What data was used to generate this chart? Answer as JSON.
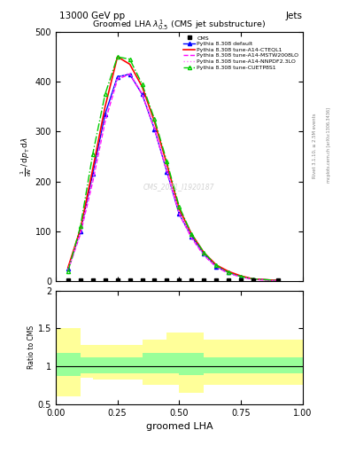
{
  "title": "13000 GeV pp",
  "title_right": "Jets",
  "plot_title": "Groomed LHA $\\lambda^{1}_{0.5}$ (CMS jet substructure)",
  "xlabel": "groomed LHA",
  "ylabel_ratio": "Ratio to CMS",
  "watermark": "CMS_2021_I1920187",
  "rivet_label": "Rivet 3.1.10, ≥ 2.5M events",
  "mcplots_label": "mcplots.cern.ch [arXiv:1306.3436]",
  "x_data": [
    0.05,
    0.1,
    0.15,
    0.2,
    0.25,
    0.3,
    0.35,
    0.4,
    0.45,
    0.5,
    0.55,
    0.6,
    0.65,
    0.7,
    0.75,
    0.8,
    0.9
  ],
  "cms_data_y": [
    2,
    2,
    2,
    2,
    2,
    2,
    2,
    2,
    2,
    2,
    2,
    2,
    2,
    2,
    2,
    2,
    2
  ],
  "default_y": [
    25,
    100,
    215,
    335,
    410,
    415,
    375,
    305,
    220,
    135,
    90,
    55,
    30,
    18,
    10,
    5,
    2
  ],
  "cteql1_y": [
    28,
    105,
    225,
    350,
    450,
    435,
    390,
    320,
    235,
    145,
    95,
    58,
    33,
    20,
    11,
    5,
    2
  ],
  "mstw_y": [
    22,
    95,
    200,
    320,
    405,
    415,
    375,
    305,
    220,
    135,
    87,
    52,
    29,
    16,
    9,
    4,
    1
  ],
  "nnpdf_y": [
    23,
    98,
    205,
    325,
    408,
    418,
    378,
    308,
    222,
    137,
    88,
    53,
    30,
    17,
    9,
    4,
    1
  ],
  "cuetp_y": [
    20,
    110,
    255,
    375,
    450,
    445,
    395,
    325,
    240,
    150,
    95,
    58,
    32,
    18,
    10,
    5,
    2
  ],
  "default_color": "#0000ff",
  "cteql1_color": "#ff0000",
  "mstw_color": "#ff00ff",
  "nnpdf_color": "#ff77ff",
  "cuetp_color": "#00cc00",
  "ylim": [
    0,
    500
  ],
  "xlim": [
    0,
    1
  ],
  "ratio_ylim": [
    0.5,
    2.0
  ],
  "ratio_yticks": [
    0.5,
    1.0,
    1.5,
    2.0
  ],
  "yellow_band_lo": [
    0.6,
    0.85,
    0.82,
    0.82,
    0.82,
    0.82,
    0.75,
    0.75,
    0.75,
    0.65,
    0.65,
    0.75,
    0.75,
    0.75,
    0.75,
    0.75,
    0.75
  ],
  "yellow_band_hi": [
    1.5,
    1.28,
    1.28,
    1.28,
    1.28,
    1.28,
    1.35,
    1.35,
    1.45,
    1.45,
    1.45,
    1.35,
    1.35,
    1.35,
    1.35,
    1.35,
    1.35
  ],
  "green_band_lo": [
    0.87,
    0.91,
    0.91,
    0.91,
    0.91,
    0.91,
    0.91,
    0.91,
    0.91,
    0.88,
    0.88,
    0.91,
    0.91,
    0.91,
    0.91,
    0.91,
    0.91
  ],
  "green_band_hi": [
    1.18,
    1.12,
    1.12,
    1.12,
    1.12,
    1.12,
    1.18,
    1.18,
    1.18,
    1.18,
    1.18,
    1.12,
    1.12,
    1.12,
    1.12,
    1.12,
    1.12
  ],
  "band_x_edges": [
    0.0,
    0.1,
    0.15,
    0.2,
    0.25,
    0.3,
    0.35,
    0.4,
    0.45,
    0.5,
    0.55,
    0.6,
    0.65,
    0.7,
    0.75,
    0.8,
    0.9,
    1.0
  ]
}
